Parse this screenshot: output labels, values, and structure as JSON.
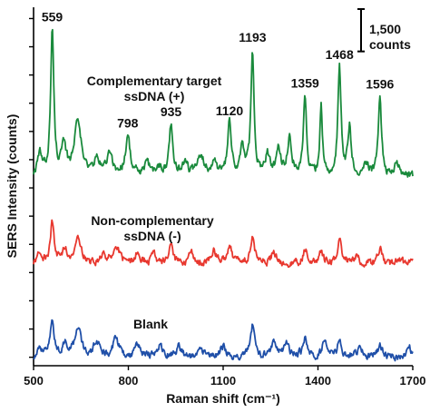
{
  "chart_data": {
    "type": "line",
    "xlabel": "Raman shift (cm⁻¹)",
    "ylabel": "SERS Intensity (counts)",
    "xlim": [
      500,
      1700
    ],
    "x_ticks": [
      500,
      800,
      1100,
      1400,
      1700
    ],
    "x_tick_labels": [
      "500",
      "800",
      "1100",
      "1400",
      "1700"
    ],
    "scale_bar": {
      "label_line1": "1,500",
      "label_line2": "counts",
      "value_counts": 1500
    },
    "colors": {
      "complementary": "#1a8a3c",
      "noncomplementary": "#e8382f",
      "blank": "#1f4fa8",
      "axis": "#000000"
    },
    "series": [
      {
        "key": "complementary",
        "label_line1": "Complementary target",
        "label_line2": "ssDNA (+)",
        "baseline": 6400,
        "peaks": [
          {
            "x": 520,
            "h": 700,
            "w": 8
          },
          {
            "x": 559,
            "h": 5100,
            "w": 6
          },
          {
            "x": 595,
            "h": 900,
            "w": 10
          },
          {
            "x": 640,
            "h": 2100,
            "w": 12
          },
          {
            "x": 700,
            "h": 500,
            "w": 12
          },
          {
            "x": 740,
            "h": 700,
            "w": 12
          },
          {
            "x": 798,
            "h": 1400,
            "w": 9
          },
          {
            "x": 860,
            "h": 400,
            "w": 10
          },
          {
            "x": 900,
            "h": 300,
            "w": 10
          },
          {
            "x": 935,
            "h": 1800,
            "w": 7
          },
          {
            "x": 980,
            "h": 500,
            "w": 10
          },
          {
            "x": 1030,
            "h": 700,
            "w": 12
          },
          {
            "x": 1070,
            "h": 500,
            "w": 10
          },
          {
            "x": 1120,
            "h": 1800,
            "w": 7
          },
          {
            "x": 1160,
            "h": 900,
            "w": 8
          },
          {
            "x": 1193,
            "h": 4400,
            "w": 6
          },
          {
            "x": 1240,
            "h": 700,
            "w": 8
          },
          {
            "x": 1275,
            "h": 900,
            "w": 8
          },
          {
            "x": 1310,
            "h": 1400,
            "w": 8
          },
          {
            "x": 1359,
            "h": 2800,
            "w": 6
          },
          {
            "x": 1410,
            "h": 2400,
            "w": 5
          },
          {
            "x": 1468,
            "h": 3800,
            "w": 6
          },
          {
            "x": 1500,
            "h": 1700,
            "w": 6
          },
          {
            "x": 1550,
            "h": 500,
            "w": 10
          },
          {
            "x": 1596,
            "h": 2800,
            "w": 6
          },
          {
            "x": 1650,
            "h": 400,
            "w": 10
          }
        ],
        "noise": 120,
        "peak_labels": [
          "559",
          "798",
          "935",
          "1120",
          "1193",
          "1359",
          "1468",
          "1596"
        ]
      },
      {
        "key": "noncomplementary",
        "label_line1": "Non-complementary",
        "label_line2": "ssDNA (-)",
        "baseline": 3300,
        "peaks": [
          {
            "x": 520,
            "h": 400,
            "w": 8
          },
          {
            "x": 559,
            "h": 1500,
            "w": 7
          },
          {
            "x": 600,
            "h": 500,
            "w": 10
          },
          {
            "x": 640,
            "h": 900,
            "w": 12
          },
          {
            "x": 720,
            "h": 300,
            "w": 10
          },
          {
            "x": 760,
            "h": 700,
            "w": 12
          },
          {
            "x": 830,
            "h": 400,
            "w": 10
          },
          {
            "x": 880,
            "h": 300,
            "w": 10
          },
          {
            "x": 935,
            "h": 600,
            "w": 8
          },
          {
            "x": 1000,
            "h": 400,
            "w": 10
          },
          {
            "x": 1070,
            "h": 500,
            "w": 10
          },
          {
            "x": 1120,
            "h": 600,
            "w": 9
          },
          {
            "x": 1193,
            "h": 1000,
            "w": 8
          },
          {
            "x": 1260,
            "h": 400,
            "w": 10
          },
          {
            "x": 1359,
            "h": 500,
            "w": 8
          },
          {
            "x": 1410,
            "h": 400,
            "w": 8
          },
          {
            "x": 1468,
            "h": 800,
            "w": 7
          },
          {
            "x": 1520,
            "h": 300,
            "w": 10
          },
          {
            "x": 1596,
            "h": 600,
            "w": 7
          },
          {
            "x": 1650,
            "h": 200,
            "w": 10
          }
        ],
        "noise": 110
      },
      {
        "key": "blank",
        "label_line1": "Blank",
        "label_line2": "",
        "baseline": 0,
        "peaks": [
          {
            "x": 520,
            "h": 300,
            "w": 8
          },
          {
            "x": 559,
            "h": 1300,
            "w": 7
          },
          {
            "x": 600,
            "h": 500,
            "w": 10
          },
          {
            "x": 640,
            "h": 1000,
            "w": 12
          },
          {
            "x": 700,
            "h": 500,
            "w": 12
          },
          {
            "x": 760,
            "h": 600,
            "w": 12
          },
          {
            "x": 830,
            "h": 400,
            "w": 10
          },
          {
            "x": 900,
            "h": 400,
            "w": 10
          },
          {
            "x": 960,
            "h": 350,
            "w": 10
          },
          {
            "x": 1030,
            "h": 300,
            "w": 10
          },
          {
            "x": 1100,
            "h": 400,
            "w": 10
          },
          {
            "x": 1193,
            "h": 1100,
            "w": 8
          },
          {
            "x": 1260,
            "h": 500,
            "w": 10
          },
          {
            "x": 1300,
            "h": 400,
            "w": 10
          },
          {
            "x": 1359,
            "h": 700,
            "w": 8
          },
          {
            "x": 1420,
            "h": 500,
            "w": 8
          },
          {
            "x": 1468,
            "h": 600,
            "w": 7
          },
          {
            "x": 1530,
            "h": 300,
            "w": 10
          },
          {
            "x": 1596,
            "h": 400,
            "w": 8
          },
          {
            "x": 1690,
            "h": 400,
            "w": 6
          }
        ],
        "noise": 110
      }
    ]
  }
}
